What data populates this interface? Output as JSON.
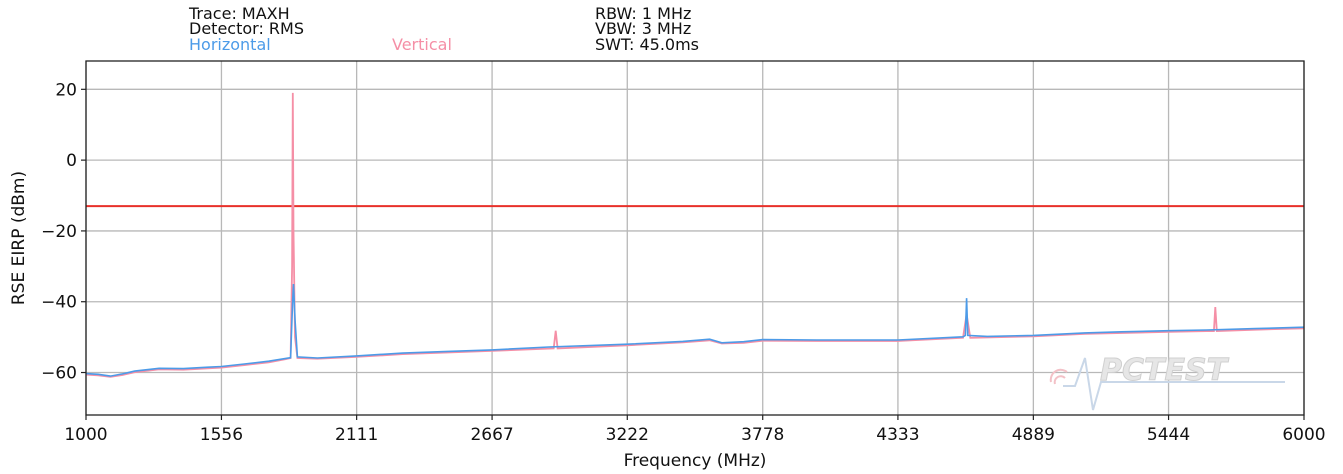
{
  "header": {
    "trace": "Trace: MAXH",
    "detector": "Detector: RMS",
    "rbw": "RBW: 1 MHz",
    "vbw": "VBW: 3 MHz",
    "swt": "SWT: 45.0ms",
    "legend_horizontal": "Horizontal",
    "legend_vertical": "Vertical"
  },
  "watermark": {
    "text": "PCTEST"
  },
  "colors": {
    "horizontal": "#4c9be8",
    "vertical": "#f58fa6",
    "limit": "#e8302a",
    "grid": "#b8b8b8",
    "frame": "#222222"
  },
  "chart_data": {
    "type": "line",
    "xlabel": "Frequency (MHz)",
    "ylabel": "RSE EIRP (dBm)",
    "xlim": [
      1000,
      6000
    ],
    "ylim": [
      -72,
      28
    ],
    "x_ticks": [
      1000,
      1556,
      2111,
      2667,
      3222,
      3778,
      4333,
      4889,
      5444,
      6000
    ],
    "y_ticks": [
      20,
      0,
      -20,
      -40,
      -60
    ],
    "grid": true,
    "limit_line": {
      "y": -13
    },
    "series": [
      {
        "name": "Horizontal",
        "points": [
          [
            1000,
            -60.3
          ],
          [
            1050,
            -60.5
          ],
          [
            1100,
            -61.0
          ],
          [
            1150,
            -60.4
          ],
          [
            1200,
            -59.6
          ],
          [
            1300,
            -58.8
          ],
          [
            1400,
            -58.9
          ],
          [
            1500,
            -58.5
          ],
          [
            1556,
            -58.3
          ],
          [
            1650,
            -57.6
          ],
          [
            1750,
            -56.8
          ],
          [
            1820,
            -56.0
          ],
          [
            1840,
            -55.8
          ],
          [
            1848,
            -40.0
          ],
          [
            1852,
            -35.0
          ],
          [
            1858,
            -45.0
          ],
          [
            1868,
            -55.6
          ],
          [
            1950,
            -55.9
          ],
          [
            2111,
            -55.3
          ],
          [
            2300,
            -54.5
          ],
          [
            2500,
            -54.0
          ],
          [
            2667,
            -53.6
          ],
          [
            2900,
            -52.8
          ],
          [
            3222,
            -52.0
          ],
          [
            3450,
            -51.2
          ],
          [
            3560,
            -50.6
          ],
          [
            3610,
            -51.6
          ],
          [
            3700,
            -51.3
          ],
          [
            3778,
            -50.7
          ],
          [
            4000,
            -50.8
          ],
          [
            4333,
            -50.8
          ],
          [
            4600,
            -49.9
          ],
          [
            4610,
            -49.5
          ],
          [
            4615,
            -39.0
          ],
          [
            4620,
            -49.5
          ],
          [
            4700,
            -49.8
          ],
          [
            4889,
            -49.5
          ],
          [
            5100,
            -48.8
          ],
          [
            5250,
            -48.5
          ],
          [
            5444,
            -48.2
          ],
          [
            5600,
            -48.0
          ],
          [
            5800,
            -47.6
          ],
          [
            6000,
            -47.2
          ]
        ]
      },
      {
        "name": "Vertical",
        "points": [
          [
            1000,
            -60.6
          ],
          [
            1050,
            -60.8
          ],
          [
            1100,
            -61.2
          ],
          [
            1150,
            -60.7
          ],
          [
            1200,
            -59.9
          ],
          [
            1300,
            -59.1
          ],
          [
            1400,
            -59.2
          ],
          [
            1500,
            -58.8
          ],
          [
            1556,
            -58.6
          ],
          [
            1650,
            -57.9
          ],
          [
            1750,
            -57.1
          ],
          [
            1820,
            -56.2
          ],
          [
            1840,
            -55.9
          ],
          [
            1846,
            -30.0
          ],
          [
            1849,
            19.0
          ],
          [
            1852,
            -20.0
          ],
          [
            1858,
            -50.0
          ],
          [
            1868,
            -55.9
          ],
          [
            1950,
            -56.1
          ],
          [
            2111,
            -55.6
          ],
          [
            2300,
            -54.8
          ],
          [
            2500,
            -54.3
          ],
          [
            2667,
            -53.9
          ],
          [
            2920,
            -53.2
          ],
          [
            2928,
            -48.2
          ],
          [
            2936,
            -53.2
          ],
          [
            3222,
            -52.3
          ],
          [
            3450,
            -51.5
          ],
          [
            3560,
            -50.9
          ],
          [
            3610,
            -51.8
          ],
          [
            3700,
            -51.6
          ],
          [
            3778,
            -51.0
          ],
          [
            4000,
            -51.1
          ],
          [
            4333,
            -51.1
          ],
          [
            4600,
            -50.2
          ],
          [
            4615,
            -43.5
          ],
          [
            4630,
            -50.2
          ],
          [
            4889,
            -49.8
          ],
          [
            5100,
            -49.1
          ],
          [
            5444,
            -48.5
          ],
          [
            5600,
            -48.3
          ],
          [
            5630,
            -48.3
          ],
          [
            5636,
            -41.5
          ],
          [
            5642,
            -48.3
          ],
          [
            5800,
            -47.9
          ],
          [
            6000,
            -47.5
          ]
        ]
      }
    ]
  }
}
